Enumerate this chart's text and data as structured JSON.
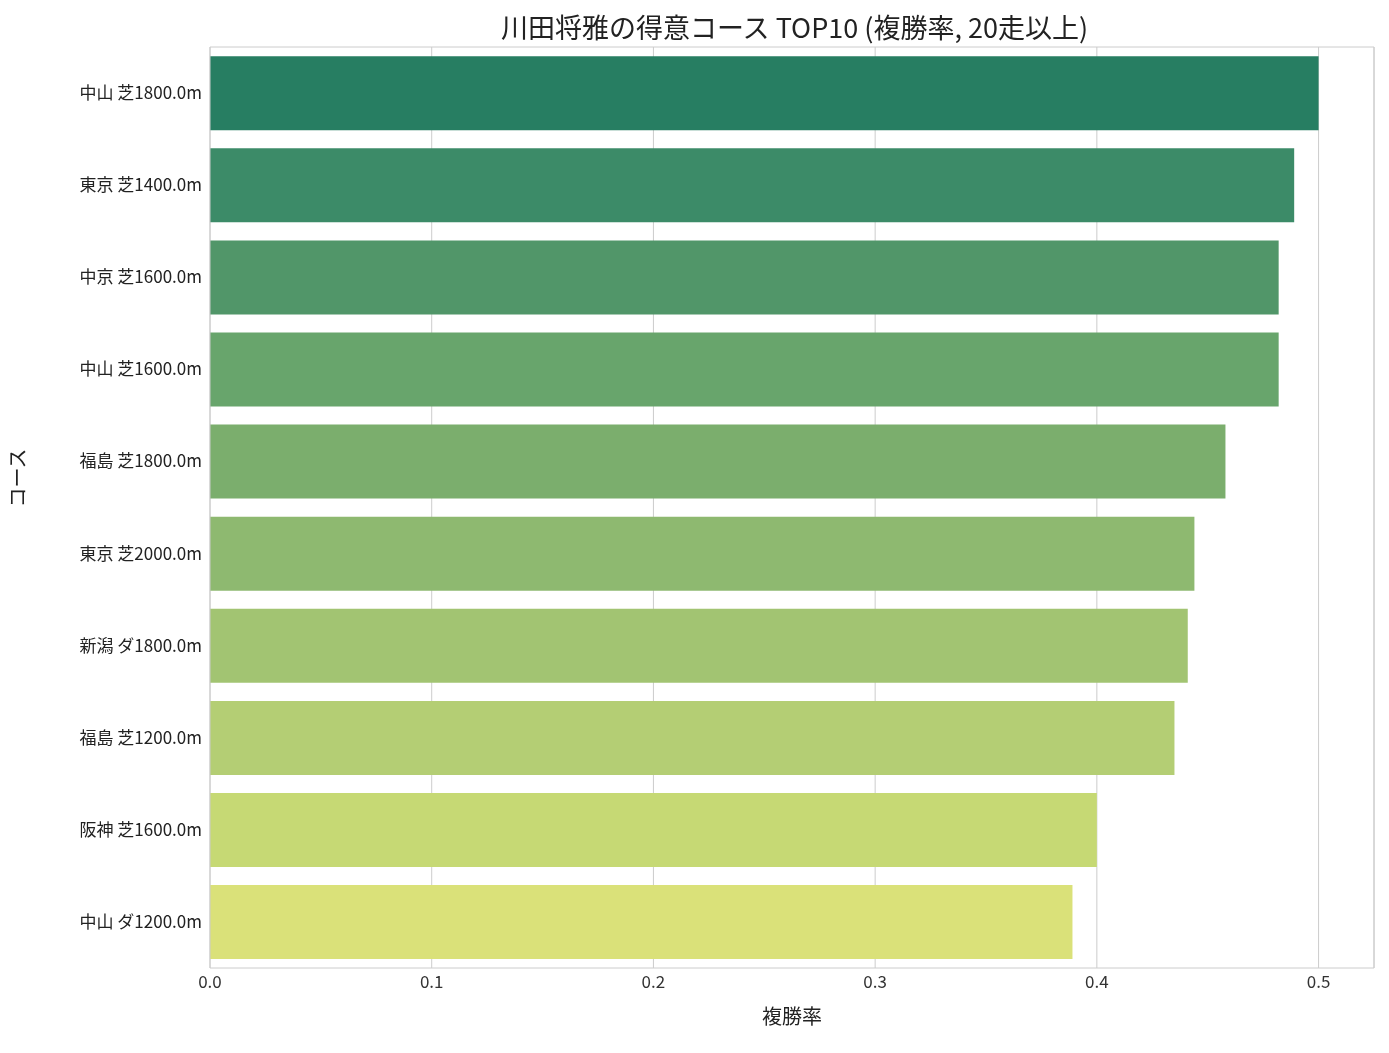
{
  "chart_data": {
    "type": "bar",
    "orientation": "horizontal",
    "title": "川田将雅の得意コース TOP10 (複勝率, 20走以上)",
    "xlabel": "複勝率",
    "ylabel": "コース",
    "categories": [
      "中山 芝1800.0m",
      "東京 芝1400.0m",
      "中京 芝1600.0m",
      "中山 芝1600.0m",
      "福島 芝1800.0m",
      "東京 芝2000.0m",
      "新潟 ダ1800.0m",
      "福島 芝1200.0m",
      "阪神 芝1600.0m",
      "中山 ダ1200.0m"
    ],
    "values": [
      0.5,
      0.489,
      0.482,
      0.482,
      0.458,
      0.444,
      0.441,
      0.435,
      0.4,
      0.389
    ],
    "colors": [
      "#277e62",
      "#3c8b68",
      "#519669",
      "#68a56c",
      "#7bae6d",
      "#8eb970",
      "#a2c472",
      "#b4ce74",
      "#c6d974",
      "#dae179"
    ],
    "xlim": [
      0,
      0.525
    ],
    "xticks": [
      {
        "value": 0,
        "label": "0.0"
      },
      {
        "value": 0.1,
        "label": "0.1"
      },
      {
        "value": 0.2,
        "label": "0.2"
      },
      {
        "value": 0.3,
        "label": "0.3"
      },
      {
        "value": 0.4,
        "label": "0.4"
      },
      {
        "value": 0.5,
        "label": "0.5"
      }
    ],
    "grid": "x"
  }
}
